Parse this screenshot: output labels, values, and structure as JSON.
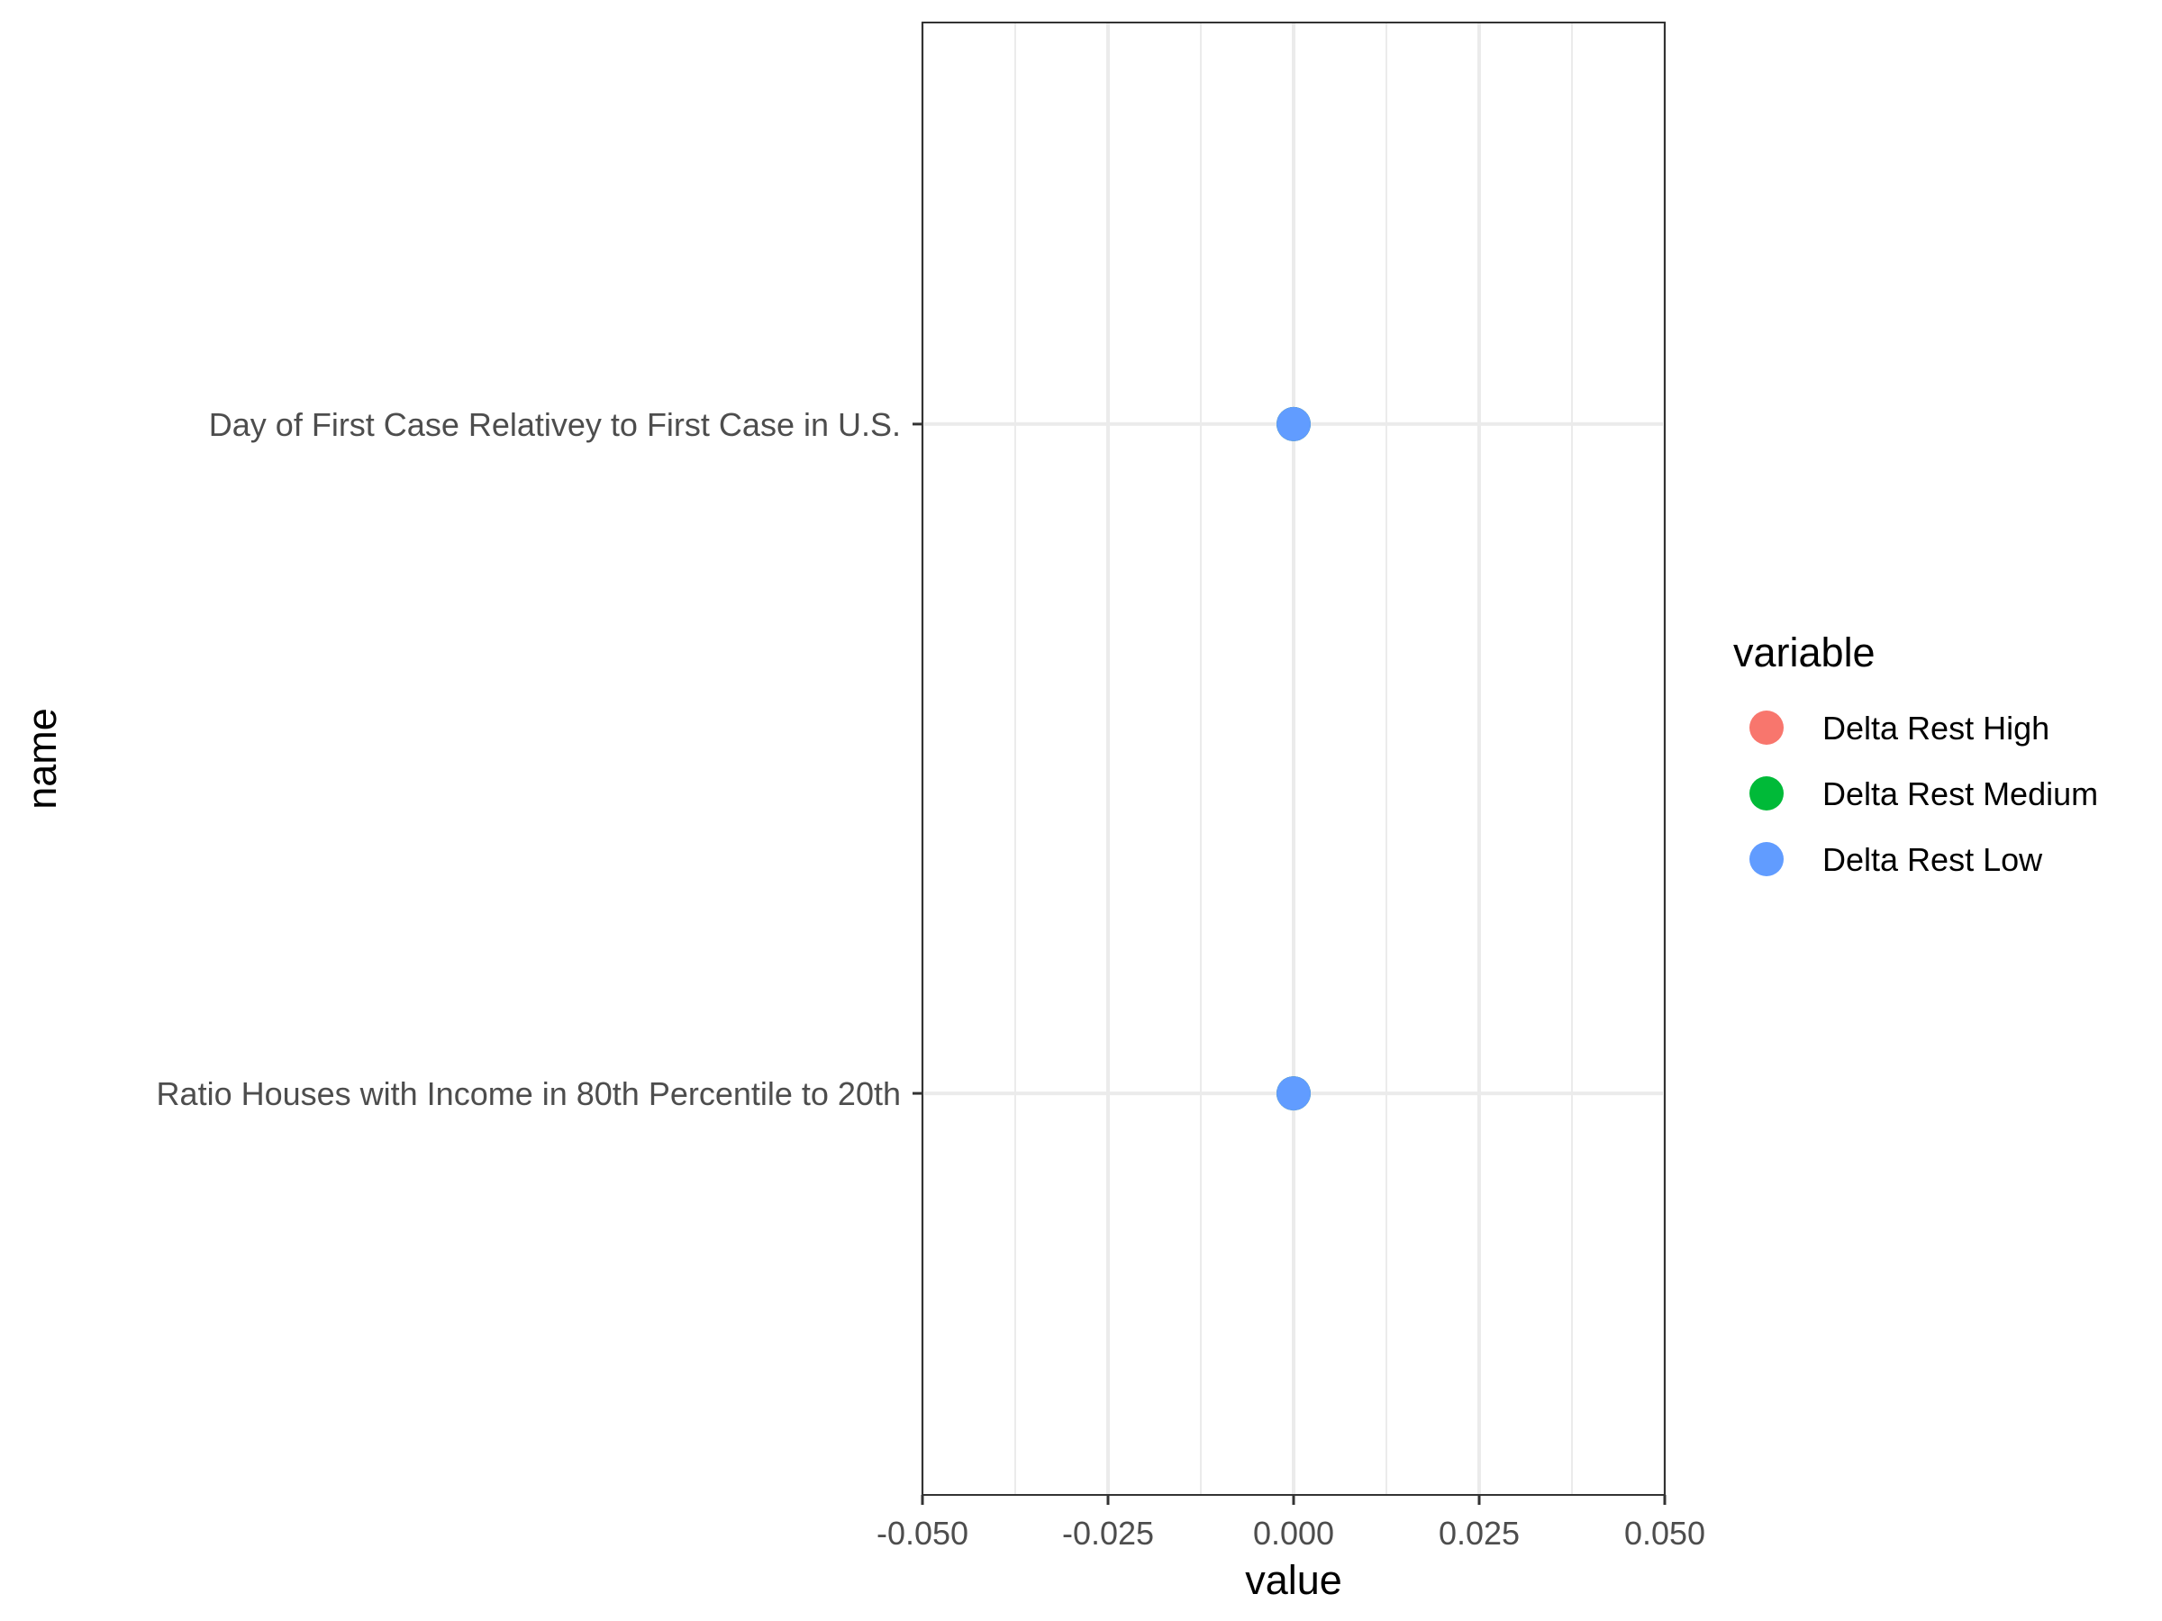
{
  "chart_data": {
    "type": "scatter",
    "xlabel": "value",
    "ylabel": "name",
    "xlim": [
      -0.05,
      0.05
    ],
    "x_ticks": [
      -0.05,
      -0.025,
      0.0,
      0.025,
      0.05
    ],
    "x_tick_labels": [
      "-0.050",
      "-0.025",
      "0.000",
      "0.025",
      "0.050"
    ],
    "categories": [
      "Day of First Case Relativey to First Case in U.S.",
      "Ratio Houses with Income in 80th Percentile to 20th"
    ],
    "series": [
      {
        "name": "Delta Rest High",
        "color": "#F8766D",
        "values": [
          0.0,
          0.0
        ]
      },
      {
        "name": "Delta Rest Medium",
        "color": "#00BA38",
        "values": [
          0.0,
          0.0
        ]
      },
      {
        "name": "Delta Rest Low",
        "color": "#619CFF",
        "values": [
          0.0,
          0.0
        ]
      }
    ],
    "legend": {
      "title": "variable",
      "position": "right",
      "entries": [
        "Delta Rest High",
        "Delta Rest Medium",
        "Delta Rest Low"
      ]
    },
    "grid": true,
    "theme": "bw"
  }
}
